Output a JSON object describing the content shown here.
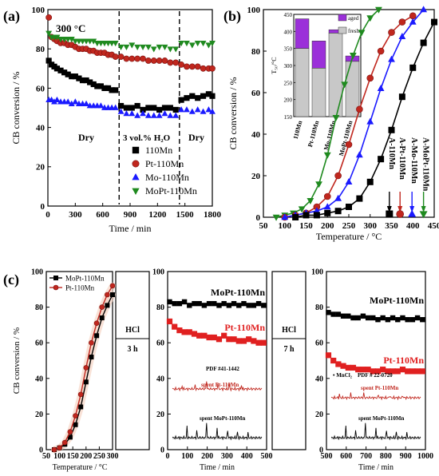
{
  "figure": {
    "panel_labels": [
      "(a)",
      "(b)",
      "(c)"
    ],
    "colors": {
      "110Mn": "#000000",
      "Pt-110Mn": "#c0271e",
      "Mo-110Mn": "#1a1aff",
      "MoPt-110Mn": "#1f8a1f",
      "aged": "#9b30d9",
      "fresh": "#c8c8c8"
    }
  },
  "chart_data": [
    {
      "id": "a",
      "type": "scatter",
      "ylabel": "CB conversion / %",
      "xlabel": "Time  / min",
      "xlim": [
        0,
        1800
      ],
      "ylim": [
        0,
        100
      ],
      "xticks": [
        0,
        300,
        600,
        900,
        1200,
        1500,
        1800
      ],
      "yticks": [
        0,
        20,
        40,
        60,
        80,
        100
      ],
      "annotations": [
        "300 °C",
        "Dry",
        "3 vol.% H₂O",
        "Dry"
      ],
      "dividers_x": [
        780,
        1440
      ],
      "legend": "lower-right",
      "series": [
        {
          "name": "110Mn",
          "marker": "square",
          "color": "#000000",
          "x": [
            10,
            40,
            70,
            100,
            140,
            180,
            220,
            260,
            300,
            340,
            380,
            420,
            460,
            500,
            540,
            580,
            620,
            660,
            700,
            740,
            800,
            860,
            920,
            980,
            1040,
            1100,
            1160,
            1220,
            1280,
            1340,
            1400,
            1460,
            1520,
            1580,
            1640,
            1700,
            1760,
            1800
          ],
          "y": [
            74,
            72,
            71,
            70,
            69,
            68,
            67,
            66,
            66,
            65,
            64,
            64,
            63,
            62,
            61,
            61,
            60,
            60,
            59,
            59,
            51,
            50,
            50,
            51,
            49,
            50,
            50,
            49,
            50,
            50,
            49,
            54,
            55,
            56,
            55,
            56,
            57,
            56
          ]
        },
        {
          "name": "Pt-110Mn",
          "marker": "circle",
          "color": "#c0271e",
          "x": [
            10,
            40,
            70,
            100,
            140,
            180,
            220,
            260,
            300,
            340,
            380,
            420,
            460,
            500,
            540,
            580,
            620,
            660,
            700,
            740,
            800,
            860,
            920,
            980,
            1040,
            1100,
            1160,
            1220,
            1280,
            1340,
            1400,
            1460,
            1520,
            1580,
            1640,
            1700,
            1760,
            1800
          ],
          "y": [
            96,
            86,
            85,
            84,
            83,
            83,
            82,
            82,
            81,
            80,
            80,
            80,
            79,
            79,
            78,
            78,
            78,
            77,
            77,
            76,
            76,
            75,
            75,
            75,
            75,
            74,
            74,
            74,
            74,
            73,
            73,
            72,
            71,
            71,
            71,
            70,
            70,
            70
          ]
        },
        {
          "name": "Mo-110Mn",
          "marker": "triangle-up",
          "color": "#1a1aff",
          "x": [
            10,
            40,
            70,
            100,
            140,
            180,
            220,
            260,
            300,
            340,
            380,
            420,
            460,
            500,
            540,
            580,
            620,
            660,
            700,
            740,
            800,
            860,
            920,
            980,
            1040,
            1100,
            1160,
            1220,
            1280,
            1340,
            1400,
            1460,
            1520,
            1580,
            1640,
            1700,
            1760,
            1800
          ],
          "y": [
            54,
            54,
            53,
            54,
            53,
            53,
            53,
            52,
            53,
            52,
            52,
            52,
            51,
            51,
            51,
            51,
            50,
            50,
            50,
            50,
            48,
            47,
            47,
            46,
            47,
            46,
            46,
            46,
            47,
            46,
            46,
            49,
            49,
            48,
            49,
            48,
            49,
            48
          ]
        },
        {
          "name": "MoPt-110Mn",
          "marker": "triangle-down",
          "color": "#1f8a1f",
          "x": [
            10,
            40,
            70,
            100,
            140,
            180,
            220,
            260,
            300,
            340,
            380,
            420,
            460,
            500,
            540,
            580,
            620,
            660,
            700,
            740,
            800,
            860,
            920,
            980,
            1040,
            1100,
            1160,
            1220,
            1280,
            1340,
            1400,
            1460,
            1520,
            1580,
            1640,
            1700,
            1760,
            1800
          ],
          "y": [
            88,
            86,
            86,
            86,
            85,
            85,
            85,
            85,
            84,
            84,
            84,
            84,
            84,
            84,
            83,
            83,
            83,
            83,
            83,
            83,
            81,
            81,
            82,
            81,
            81,
            81,
            80,
            81,
            81,
            80,
            80,
            83,
            83,
            82,
            83,
            83,
            82,
            83
          ]
        }
      ]
    },
    {
      "id": "b",
      "type": "line",
      "ylabel": "CB conversion / %",
      "xlabel": "Temperature / °C",
      "xlim": [
        50,
        450
      ],
      "ylim": [
        0,
        100
      ],
      "xticks": [
        50,
        100,
        150,
        200,
        250,
        300,
        350,
        400,
        450
      ],
      "yticks": [
        0,
        20,
        40,
        60,
        80,
        100
      ],
      "series": [
        {
          "name": "MoPt-110Mn",
          "marker": "triangle-down",
          "color": "#1f8a1f",
          "x": [
            80,
            100,
            120,
            140,
            160,
            180,
            200,
            220,
            240,
            260,
            280,
            300,
            320
          ],
          "y": [
            0,
            1,
            2,
            4,
            8,
            16,
            30,
            48,
            64,
            78,
            89,
            96,
            100
          ]
        },
        {
          "name": "Pt-110Mn",
          "marker": "circle",
          "color": "#c0271e",
          "x": [
            100,
            125,
            150,
            175,
            200,
            225,
            250,
            275,
            300,
            325,
            350,
            375,
            400
          ],
          "y": [
            0,
            1,
            2,
            5,
            10,
            20,
            35,
            52,
            67,
            80,
            89,
            94,
            97
          ]
        },
        {
          "name": "Mo-110Mn",
          "marker": "triangle-up",
          "color": "#1a1aff",
          "x": [
            100,
            125,
            150,
            175,
            200,
            225,
            250,
            275,
            300,
            325,
            350,
            375,
            400,
            425
          ],
          "y": [
            0,
            1,
            2,
            3,
            5,
            9,
            17,
            30,
            46,
            62,
            76,
            87,
            94,
            100
          ]
        },
        {
          "name": "110Mn",
          "marker": "square",
          "color": "#000000",
          "x": [
            125,
            150,
            175,
            200,
            225,
            250,
            275,
            300,
            325,
            350,
            375,
            400,
            425,
            450
          ],
          "y": [
            0,
            1,
            1,
            2,
            3,
            5,
            9,
            17,
            28,
            42,
            58,
            72,
            84,
            94
          ]
        }
      ],
      "arrow_labels": [
        {
          "text": "A-110Mn",
          "x": 345,
          "color": "#000000"
        },
        {
          "text": "A-Pt-110Mn",
          "x": 370,
          "color": "#c0271e"
        },
        {
          "text": "A-Mo-110Mn",
          "x": 398,
          "color": "#1a1aff"
        },
        {
          "text": "A-MoPt-110Mn",
          "x": 425,
          "color": "#1f8a1f"
        }
      ]
    },
    {
      "id": "b-inset",
      "type": "bar",
      "ylabel": "T₅₀/°C",
      "ylim": [
        150,
        450
      ],
      "yticks": [
        150,
        200,
        250,
        300,
        350,
        400,
        450
      ],
      "categories": [
        "110Mn",
        "Pt-110Mn",
        "Mo-110Mn",
        "MoPt-110Mn"
      ],
      "legend_entries": [
        "aged",
        "fresh"
      ],
      "series": [
        {
          "name": "fresh",
          "color": "#c8c8c8",
          "values": [
            350,
            292,
            395,
            312
          ]
        },
        {
          "name": "aged",
          "color": "#9b30d9",
          "values": [
            437,
            372,
            405,
            328
          ]
        }
      ]
    },
    {
      "id": "c1",
      "type": "line",
      "ylabel": "CB conversion / %",
      "xlabel": "Temperature / °C",
      "xlim": [
        50,
        300
      ],
      "ylim": [
        0,
        100
      ],
      "xticks": [
        50,
        100,
        150,
        200,
        250,
        300
      ],
      "xticklabels": [
        "50",
        "100",
        "150",
        "200",
        "250",
        "300"
      ],
      "yticks": [
        0,
        20,
        40,
        60,
        80,
        100
      ],
      "series": [
        {
          "name": "MoPt-110Mn",
          "marker": "square",
          "color": "#000000",
          "x": [
            80,
            100,
            120,
            140,
            160,
            180,
            200,
            220,
            240,
            260,
            280,
            300
          ],
          "y": [
            0,
            1,
            3,
            7,
            14,
            24,
            38,
            52,
            64,
            74,
            81,
            87
          ]
        },
        {
          "name": "Pt-110Mn",
          "marker": "circle",
          "color": "#c0271e",
          "x": [
            80,
            100,
            120,
            140,
            160,
            180,
            200,
            220,
            240,
            260,
            280,
            300
          ],
          "y": [
            0,
            1,
            4,
            10,
            19,
            31,
            46,
            60,
            71,
            80,
            87,
            92
          ]
        }
      ]
    },
    {
      "id": "c2",
      "type": "scatter",
      "xlabel": "Time / min",
      "xlim": [
        0,
        500
      ],
      "ylim": [
        0,
        100
      ],
      "xticks": [
        0,
        100,
        200,
        300,
        400,
        500
      ],
      "yticks": [
        0,
        20,
        40,
        60,
        80,
        100
      ],
      "side_label": [
        "HCl",
        "3 h"
      ],
      "series": [
        {
          "name": "MoPt-110Mn",
          "marker": "square",
          "color": "#000000",
          "x": [
            10,
            35,
            60,
            85,
            110,
            135,
            160,
            185,
            210,
            235,
            260,
            285,
            310,
            335,
            360,
            385,
            410,
            435,
            460,
            485
          ],
          "y": [
            83,
            82,
            82,
            83,
            81,
            82,
            82,
            81,
            82,
            82,
            81,
            82,
            81,
            82,
            81,
            82,
            81,
            81,
            82,
            81
          ]
        },
        {
          "name": "Pt-110Mn",
          "marker": "square",
          "color": "#e02020",
          "x": [
            10,
            35,
            60,
            85,
            110,
            135,
            160,
            185,
            210,
            235,
            260,
            285,
            310,
            335,
            360,
            385,
            410,
            435,
            460,
            485
          ],
          "y": [
            72,
            69,
            67,
            66,
            66,
            65,
            64,
            64,
            63,
            63,
            62,
            64,
            62,
            62,
            61,
            61,
            62,
            61,
            60,
            60
          ]
        }
      ],
      "xrd_labels": [
        "PDF #41-1442",
        "spent Pt-110Mn",
        "spent MoPt-110Mn"
      ]
    },
    {
      "id": "c3",
      "type": "scatter",
      "xlabel": "Time / min",
      "xlim": [
        500,
        1000
      ],
      "ylim": [
        0,
        100
      ],
      "xticks": [
        500,
        600,
        700,
        800,
        900,
        1000
      ],
      "yticks": [
        0,
        20,
        40,
        60,
        80,
        100
      ],
      "side_label": [
        "HCl",
        "7 h"
      ],
      "series": [
        {
          "name": "MoPt-110Mn",
          "marker": "square",
          "color": "#000000",
          "x": [
            510,
            535,
            560,
            585,
            610,
            635,
            660,
            685,
            710,
            735,
            760,
            785,
            810,
            835,
            860,
            885,
            910,
            935,
            960,
            985
          ],
          "y": [
            77,
            76,
            76,
            75,
            75,
            74,
            74,
            75,
            74,
            74,
            73,
            74,
            73,
            74,
            73,
            74,
            73,
            73,
            74,
            73
          ]
        },
        {
          "name": "Pt-110Mn",
          "marker": "square",
          "color": "#e02020",
          "x": [
            510,
            535,
            560,
            585,
            610,
            635,
            660,
            685,
            710,
            735,
            760,
            785,
            810,
            835,
            860,
            885,
            910,
            935,
            960,
            985
          ],
          "y": [
            53,
            50,
            48,
            47,
            46,
            46,
            45,
            45,
            45,
            44,
            44,
            45,
            44,
            44,
            44,
            45,
            44,
            44,
            44,
            44
          ]
        }
      ],
      "xrd_labels": [
        "• MnCl₂",
        "PDF # 22-0720",
        "spent Pt-110Mn",
        "spent MoPt-110Mn"
      ]
    }
  ]
}
